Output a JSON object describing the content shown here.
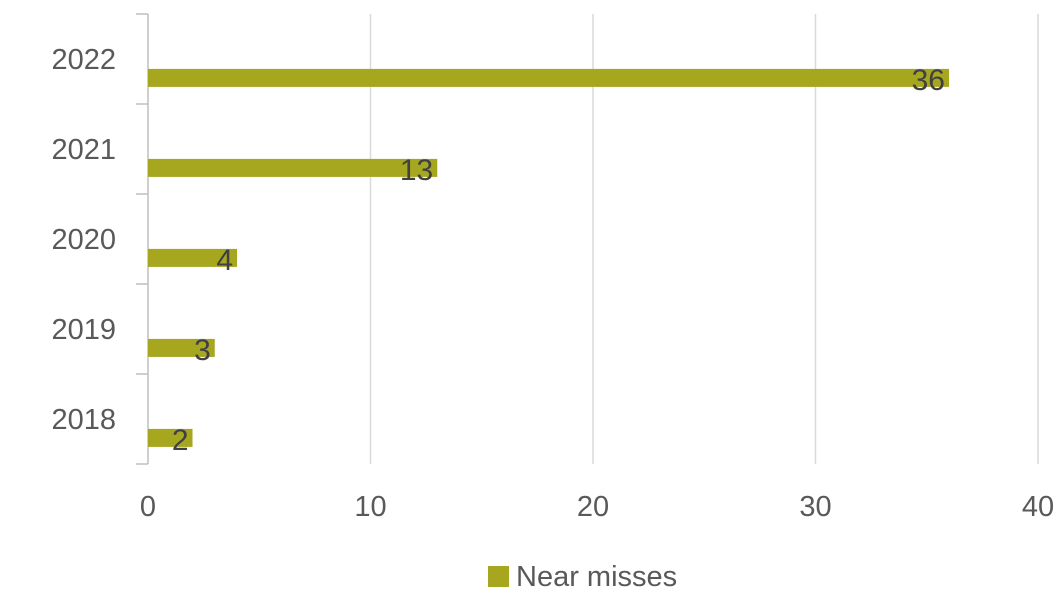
{
  "chart_data": {
    "type": "bar",
    "orientation": "horizontal",
    "title": "",
    "xlabel": "",
    "ylabel": "",
    "categories": [
      "2018",
      "2019",
      "2020",
      "2021",
      "2022"
    ],
    "series": [
      {
        "name": "Near misses",
        "values": [
          2,
          3,
          4,
          13,
          36
        ],
        "color": "#a6a61f"
      }
    ],
    "xlim": [
      0,
      40
    ],
    "xticks": [
      0,
      10,
      20,
      30,
      40
    ],
    "xtick_labels": [
      "0",
      "10",
      "20",
      "30",
      "40"
    ],
    "grid": "vertical",
    "data_labels": true,
    "legend": {
      "position": "bottom"
    }
  },
  "colors": {
    "bar": "#a6a61f",
    "grid": "#d9d9d9",
    "axis": "#bfbfbf",
    "text": "#595959",
    "data_label": "#404040"
  }
}
